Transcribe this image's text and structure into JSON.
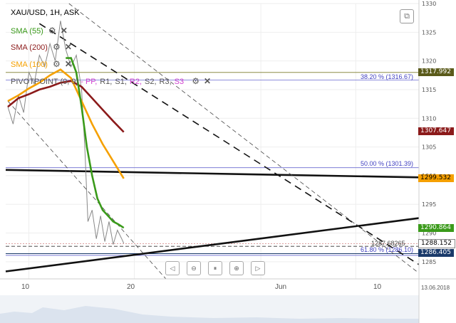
{
  "header": {
    "symbol": "XAU/USD, 1H, ASK"
  },
  "indicators": [
    {
      "label": "SMA (55)",
      "color": "#3a9a1a",
      "gear_icon": "gear-icon",
      "close_icon": "close-icon"
    },
    {
      "label": "SMA (200)",
      "color": "#8b1a1a",
      "gear_icon": "gear-icon",
      "close_icon": "close-icon"
    },
    {
      "label": "SMA (100)",
      "color": "#f5a000",
      "gear_icon": "gear-icon",
      "close_icon": "close-icon"
    }
  ],
  "pivot": {
    "label": "PIVOTPOINT (0, 9)",
    "parts": [
      {
        "text": "- PP,",
        "color": "#d040d0"
      },
      {
        "text": "R1,",
        "color": "#555555"
      },
      {
        "text": "S1,",
        "color": "#555555"
      },
      {
        "text": "R2,",
        "color": "#d040d0"
      },
      {
        "text": "S2,",
        "color": "#555555"
      },
      {
        "text": "R3,",
        "color": "#555555"
      },
      {
        "text": "S3",
        "color": "#d040d0"
      }
    ]
  },
  "fib_labels": [
    {
      "text": "38.20 % (1316.67)",
      "price": 1316.67
    },
    {
      "text": "50.00 % (1301.39)",
      "price": 1301.39
    },
    {
      "text": "61.80 % (1286.10)",
      "price": 1286.1
    }
  ],
  "hidden_label": "1287.68265",
  "price_flags": [
    {
      "text": "1317.992",
      "price": 1317.992,
      "bg": "#5a5a1a",
      "fg": "#ffffff"
    },
    {
      "text": "1307.647",
      "price": 1307.647,
      "bg": "#8b1a1a",
      "fg": "#ffffff"
    },
    {
      "text": "1299.532",
      "price": 1299.532,
      "bg": "#f5a000",
      "fg": "#000000"
    },
    {
      "text": "1290.864",
      "price": 1290.864,
      "bg": "#3a9a1a",
      "fg": "#ffffff"
    },
    {
      "text": "1288.152",
      "price": 1288.152,
      "bg": "#ffffff",
      "fg": "#000000"
    },
    {
      "text": "1286.405",
      "price": 1286.405,
      "bg": "#1a3a6a",
      "fg": "#ffffff"
    }
  ],
  "date_label": "13.06.2018",
  "nav_icons": [
    "prev-icon",
    "zoom-out-icon",
    "zoom-in-icon",
    "pause-icon",
    "zoom-plus-icon",
    "next-icon"
  ],
  "screenshot_icon": "screenshot-icon",
  "chart_data": {
    "type": "line",
    "title": "XAU/USD, 1H, ASK",
    "ylim": [
      1282,
      1330
    ],
    "y_ticks": [
      1285,
      1290,
      1295,
      1300,
      1305,
      1310,
      1315,
      1320,
      1325,
      1330
    ],
    "x_ticks": [
      "10",
      "20",
      "Jun",
      "10"
    ],
    "x_days": [
      10,
      20,
      32,
      41
    ],
    "xlim_days": [
      7.8,
      47
    ],
    "grid": true,
    "series": [
      {
        "name": "SMA (55)",
        "color": "#3a9a1a",
        "x": [
          13.5,
          14.0,
          14.5,
          15.0,
          15.5,
          16.0,
          16.5,
          17.0,
          17.5,
          18.0,
          18.5,
          19.0
        ],
        "values": [
          1320.5,
          1320.5,
          1318,
          1312,
          1305,
          1300,
          1296,
          1294,
          1293,
          1292,
          1291.5,
          1290.9
        ]
      },
      {
        "name": "SMA (200)",
        "color": "#8b1a1a",
        "x": [
          8.0,
          9.0,
          10.0,
          11.0,
          12.0,
          13.0,
          14.0,
          15.0,
          16.0,
          17.0,
          18.0,
          19.0
        ],
        "values": [
          1312,
          1313.5,
          1314.2,
          1315.0,
          1315.5,
          1316.2,
          1316.5,
          1315.5,
          1313.5,
          1311.5,
          1309.5,
          1307.6
        ]
      },
      {
        "name": "SMA (100)",
        "color": "#f5a000",
        "x": [
          8.0,
          9.0,
          10.0,
          11.0,
          12.0,
          13.0,
          14.0,
          15.0,
          16.0,
          17.0,
          18.0,
          19.0
        ],
        "values": [
          1313,
          1314,
          1315.2,
          1316.2,
          1317.5,
          1318.5,
          1317.0,
          1313,
          1309,
          1305.5,
          1302.5,
          1299.5
        ]
      },
      {
        "name": "Price",
        "color": "#888888",
        "x": [
          8.0,
          8.5,
          9.0,
          9.5,
          10.0,
          10.5,
          11.0,
          11.5,
          12.0,
          12.5,
          13.0,
          13.5,
          14.0,
          14.5,
          15.0,
          15.3,
          15.6,
          16.0,
          16.4,
          16.8,
          17.2,
          17.6,
          18.0,
          18.4,
          18.8,
          19.0
        ],
        "values": [
          1312,
          1309,
          1314,
          1311,
          1318,
          1316,
          1321,
          1319,
          1323,
          1320,
          1327,
          1322,
          1319,
          1321,
          1315,
          1305,
          1292,
          1294,
          1289,
          1293,
          1288.5,
          1292,
          1288,
          1290.5,
          1289,
          1288.2
        ]
      }
    ],
    "fibonacci": [
      {
        "level": "38.20 %",
        "price": 1316.67
      },
      {
        "level": "50.00 %",
        "price": 1301.39
      },
      {
        "level": "61.80 %",
        "price": 1286.1
      }
    ],
    "horizontal_lines": [
      1317.992,
      1288.152,
      1287.68265,
      1286.405
    ],
    "trendlines": [
      {
        "style": "solid",
        "from": [
          7.8,
          1301.0
        ],
        "to": [
          47.0,
          1299.7
        ]
      },
      {
        "style": "solid",
        "from": [
          7.8,
          1283.3
        ],
        "to": [
          47.0,
          1292.6
        ]
      },
      {
        "style": "dashed-long",
        "from": [
          11.0,
          1326.5
        ],
        "to": [
          47.0,
          1284.5
        ]
      },
      {
        "style": "dashed-thin",
        "from": [
          13.8,
          1330.0
        ],
        "to": [
          47.0,
          1283.0
        ]
      },
      {
        "style": "dashed-thin",
        "from": [
          8.0,
          1313.0
        ],
        "to": [
          23.0,
          1282.0
        ]
      }
    ]
  }
}
